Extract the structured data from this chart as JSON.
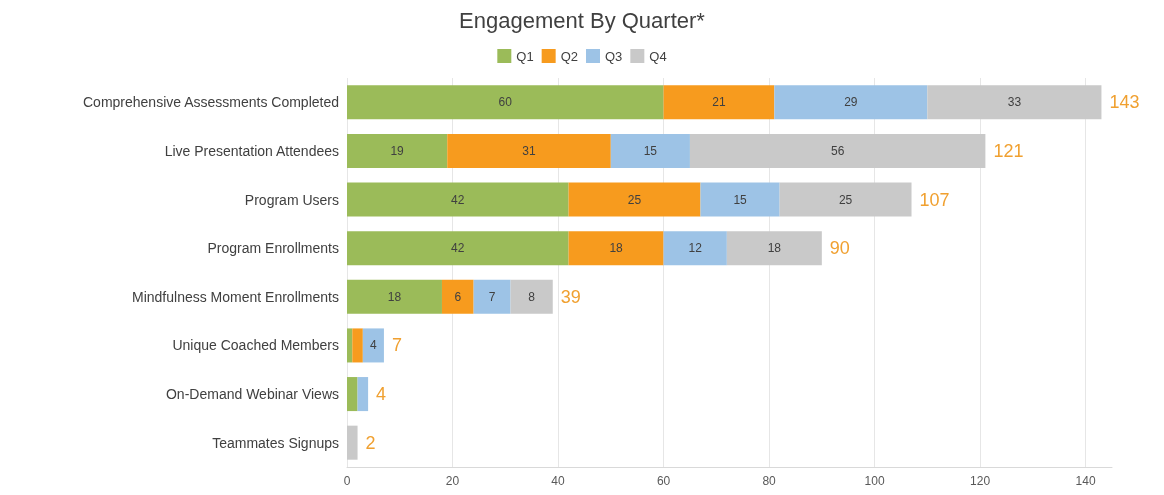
{
  "chart_data": {
    "type": "bar",
    "orientation": "horizontal",
    "stacked": true,
    "title": "Engagement By Quarter*",
    "categories": [
      "Comprehensive Assessments Completed",
      "Live Presentation Attendees",
      "Program Users",
      "Program Enrollments",
      "Mindfulness Moment Enrollments",
      "Unique Coached Members",
      "On-Demand Webinar Views",
      "Teammates Signups"
    ],
    "series": [
      {
        "name": "Q1",
        "color": "#9bbb59",
        "values": [
          60,
          19,
          42,
          42,
          18,
          1,
          2,
          null
        ],
        "value_labels": [
          "60",
          "19",
          "42",
          "42",
          "18",
          null,
          null,
          null
        ]
      },
      {
        "name": "Q2",
        "color": "#f79b1e",
        "values": [
          21,
          31,
          25,
          18,
          6,
          2,
          null,
          null
        ],
        "value_labels": [
          "21",
          "31",
          "25",
          "18",
          "6",
          null,
          null,
          null
        ]
      },
      {
        "name": "Q3",
        "color": "#9dc3e6",
        "values": [
          29,
          15,
          15,
          12,
          7,
          4,
          2,
          null
        ],
        "value_labels": [
          "29",
          "15",
          "15",
          "12",
          "7",
          "4",
          null,
          null
        ]
      },
      {
        "name": "Q4",
        "color": "#c9c9c9",
        "values": [
          33,
          56,
          25,
          18,
          8,
          null,
          null,
          2
        ],
        "value_labels": [
          "33",
          "56",
          "25",
          "18",
          "8",
          null,
          null,
          null
        ]
      }
    ],
    "totals": [
      "143",
      "121",
      "107",
      "90",
      "39",
      "7",
      "4",
      "2"
    ],
    "xlim": [
      0,
      145
    ],
    "xticks": [
      0,
      20,
      40,
      60,
      80,
      100,
      120,
      140
    ],
    "grid": "x",
    "legend": "top"
  }
}
